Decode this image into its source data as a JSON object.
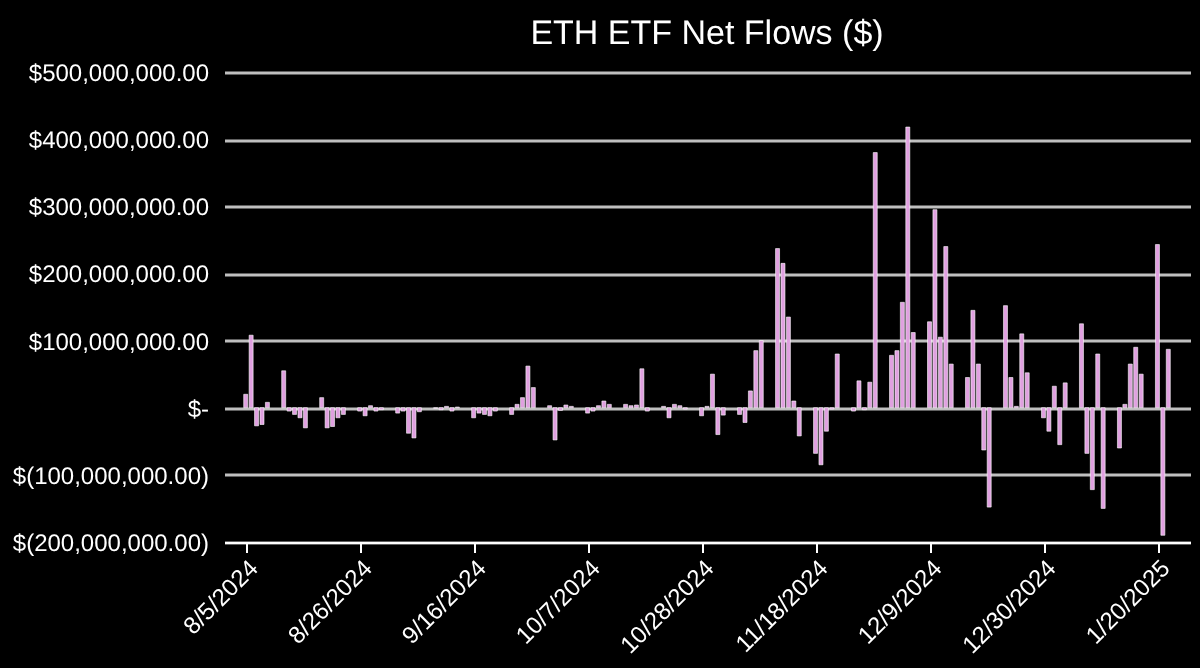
{
  "chart_data": {
    "type": "bar",
    "title": "ETH ETF Net Flows ($)",
    "x": [
      "2024-08-05",
      "2024-08-06",
      "2024-08-07",
      "2024-08-08",
      "2024-08-09",
      "2024-08-12",
      "2024-08-13",
      "2024-08-14",
      "2024-08-15",
      "2024-08-16",
      "2024-08-19",
      "2024-08-20",
      "2024-08-21",
      "2024-08-22",
      "2024-08-23",
      "2024-08-26",
      "2024-08-27",
      "2024-08-28",
      "2024-08-29",
      "2024-08-30",
      "2024-09-02",
      "2024-09-03",
      "2024-09-04",
      "2024-09-05",
      "2024-09-06",
      "2024-09-09",
      "2024-09-10",
      "2024-09-11",
      "2024-09-12",
      "2024-09-13",
      "2024-09-16",
      "2024-09-17",
      "2024-09-18",
      "2024-09-19",
      "2024-09-20",
      "2024-09-23",
      "2024-09-24",
      "2024-09-25",
      "2024-09-26",
      "2024-09-27",
      "2024-09-30",
      "2024-10-01",
      "2024-10-02",
      "2024-10-03",
      "2024-10-04",
      "2024-10-07",
      "2024-10-08",
      "2024-10-09",
      "2024-10-10",
      "2024-10-11",
      "2024-10-14",
      "2024-10-15",
      "2024-10-16",
      "2024-10-17",
      "2024-10-18",
      "2024-10-21",
      "2024-10-22",
      "2024-10-23",
      "2024-10-24",
      "2024-10-25",
      "2024-10-28",
      "2024-10-29",
      "2024-10-30",
      "2024-10-31",
      "2024-11-01",
      "2024-11-04",
      "2024-11-05",
      "2024-11-06",
      "2024-11-07",
      "2024-11-08",
      "2024-11-11",
      "2024-11-12",
      "2024-11-13",
      "2024-11-14",
      "2024-11-15",
      "2024-11-18",
      "2024-11-19",
      "2024-11-20",
      "2024-11-21",
      "2024-11-22",
      "2024-11-25",
      "2024-11-26",
      "2024-11-27",
      "2024-11-28",
      "2024-11-29",
      "2024-12-02",
      "2024-12-03",
      "2024-12-04",
      "2024-12-05",
      "2024-12-06",
      "2024-12-09",
      "2024-12-10",
      "2024-12-11",
      "2024-12-12",
      "2024-12-13",
      "2024-12-16",
      "2024-12-17",
      "2024-12-18",
      "2024-12-19",
      "2024-12-20",
      "2024-12-23",
      "2024-12-24",
      "2024-12-25",
      "2024-12-26",
      "2024-12-27",
      "2024-12-30",
      "2024-12-31",
      "2025-01-01",
      "2025-01-02",
      "2025-01-03",
      "2025-01-06",
      "2025-01-07",
      "2025-01-08",
      "2025-01-09",
      "2025-01-10",
      "2025-01-13",
      "2025-01-14",
      "2025-01-15",
      "2025-01-16",
      "2025-01-17",
      "2025-01-20",
      "2025-01-21",
      "2025-01-22"
    ],
    "values": [
      20000000,
      108000000,
      -27000000,
      -25000000,
      8000000,
      55000000,
      -5000000,
      -10000000,
      -15000000,
      -30000000,
      15000000,
      -30000000,
      -28000000,
      -15000000,
      -10000000,
      -5000000,
      -12000000,
      3000000,
      -5000000,
      -3000000,
      -8000000,
      -5000000,
      -38000000,
      -45000000,
      -6000000,
      -1000000,
      -3000000,
      2000000,
      -5000000,
      1000000,
      -15000000,
      -8000000,
      -10000000,
      -12000000,
      -5000000,
      -10000000,
      5000000,
      15000000,
      62000000,
      30000000,
      3000000,
      -48000000,
      -4000000,
      4000000,
      2000000,
      -8000000,
      -5000000,
      3000000,
      10000000,
      5000000,
      5000000,
      3000000,
      4000000,
      58000000,
      -5000000,
      2000000,
      -15000000,
      5000000,
      3000000,
      -2000000,
      -12000000,
      2000000,
      50000000,
      -40000000,
      -11000000,
      -10000000,
      -22000000,
      25000000,
      85000000,
      100000000,
      237000000,
      215000000,
      135000000,
      10000000,
      -42000000,
      -68000000,
      -85000000,
      -35000000,
      -2000000,
      80000000,
      -5000000,
      40000000,
      -3000000,
      38000000,
      380000000,
      78000000,
      85000000,
      157000000,
      418000000,
      112000000,
      128000000,
      295000000,
      105000000,
      240000000,
      65000000,
      45000000,
      145000000,
      65000000,
      -63000000,
      -148000000,
      152000000,
      45000000,
      2000000,
      110000000,
      52000000,
      -15000000,
      -35000000,
      32000000,
      -55000000,
      37000000,
      125000000,
      -68000000,
      -122000000,
      80000000,
      -150000000,
      -60000000,
      5000000,
      65000000,
      90000000,
      50000000,
      243000000,
      -190000000,
      87000000
    ],
    "color": "#e0a0e0",
    "xlim": [
      "2024-08-01",
      "2025-01-26"
    ],
    "xticks": [
      {
        "value": "2024-08-05",
        "label": "8/5/2024"
      },
      {
        "value": "2024-08-26",
        "label": "8/26/2024"
      },
      {
        "value": "2024-09-16",
        "label": "9/16/2024"
      },
      {
        "value": "2024-10-07",
        "label": "10/7/2024"
      },
      {
        "value": "2024-10-28",
        "label": "10/28/2024"
      },
      {
        "value": "2024-11-18",
        "label": "11/18/2024"
      },
      {
        "value": "2024-12-09",
        "label": "12/9/2024"
      },
      {
        "value": "2024-12-30",
        "label": "12/30/2024"
      },
      {
        "value": "2025-01-20",
        "label": "1/20/2025"
      }
    ],
    "ylim": [
      -200000000,
      500000000
    ],
    "yticks": [
      {
        "value": -200000000,
        "label": "$(200,000,000.00)"
      },
      {
        "value": -100000000,
        "label": "$(100,000,000.00)"
      },
      {
        "value": 0,
        "label": "$-"
      },
      {
        "value": 100000000,
        "label": "$100,000,000.00"
      },
      {
        "value": 200000000,
        "label": "$200,000,000.00"
      },
      {
        "value": 300000000,
        "label": "$300,000,000.00"
      },
      {
        "value": 400000000,
        "label": "$400,000,000.00"
      },
      {
        "value": 500000000,
        "label": "$500,000,000.00"
      }
    ],
    "grid": "y"
  }
}
